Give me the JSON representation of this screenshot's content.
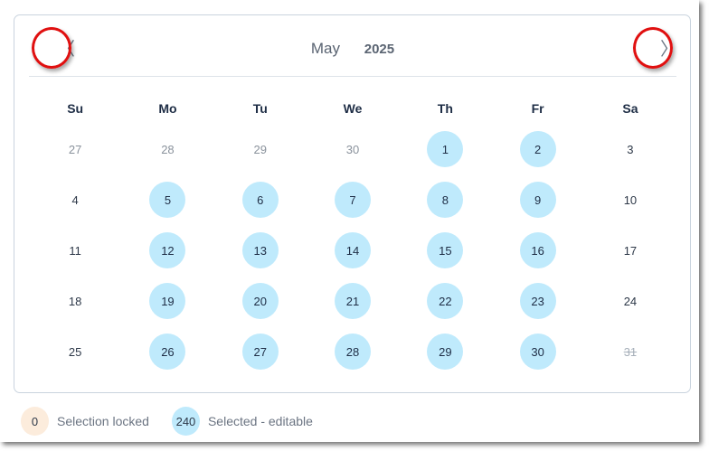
{
  "calendar": {
    "month": "May",
    "year": "2025",
    "prev_icon": "chevron-left-icon",
    "next_icon": "chevron-right-icon",
    "weekdays": [
      "Su",
      "Mo",
      "Tu",
      "We",
      "Th",
      "Fr",
      "Sa"
    ],
    "days": [
      {
        "d": "27",
        "state": "other"
      },
      {
        "d": "28",
        "state": "other"
      },
      {
        "d": "29",
        "state": "other"
      },
      {
        "d": "30",
        "state": "other"
      },
      {
        "d": "1",
        "state": "selected"
      },
      {
        "d": "2",
        "state": "selected"
      },
      {
        "d": "3",
        "state": "normal"
      },
      {
        "d": "4",
        "state": "normal"
      },
      {
        "d": "5",
        "state": "selected"
      },
      {
        "d": "6",
        "state": "selected"
      },
      {
        "d": "7",
        "state": "selected"
      },
      {
        "d": "8",
        "state": "selected"
      },
      {
        "d": "9",
        "state": "selected"
      },
      {
        "d": "10",
        "state": "normal"
      },
      {
        "d": "11",
        "state": "normal"
      },
      {
        "d": "12",
        "state": "selected"
      },
      {
        "d": "13",
        "state": "selected"
      },
      {
        "d": "14",
        "state": "selected"
      },
      {
        "d": "15",
        "state": "selected"
      },
      {
        "d": "16",
        "state": "selected"
      },
      {
        "d": "17",
        "state": "normal"
      },
      {
        "d": "18",
        "state": "normal"
      },
      {
        "d": "19",
        "state": "selected"
      },
      {
        "d": "20",
        "state": "selected"
      },
      {
        "d": "21",
        "state": "selected"
      },
      {
        "d": "22",
        "state": "selected"
      },
      {
        "d": "23",
        "state": "selected"
      },
      {
        "d": "24",
        "state": "normal"
      },
      {
        "d": "25",
        "state": "normal"
      },
      {
        "d": "26",
        "state": "selected"
      },
      {
        "d": "27",
        "state": "selected"
      },
      {
        "d": "28",
        "state": "selected"
      },
      {
        "d": "29",
        "state": "selected"
      },
      {
        "d": "30",
        "state": "selected"
      },
      {
        "d": "31",
        "state": "disabled"
      }
    ]
  },
  "legend": {
    "locked_count": "0",
    "locked_label": "Selection locked",
    "editable_count": "240",
    "editable_label": "Selected - editable"
  },
  "colors": {
    "selected": "#bfeafc",
    "locked": "#fcecdc",
    "annotation": "#e01010"
  }
}
